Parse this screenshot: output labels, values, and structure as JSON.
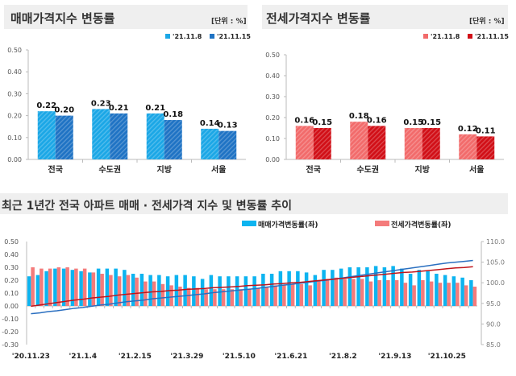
{
  "chart_data": [
    {
      "type": "bar",
      "title": "매매가격지수 변동률",
      "unit": "[단위 : %]",
      "categories": [
        "전국",
        "수도권",
        "지방",
        "서울"
      ],
      "series": [
        {
          "name": "'21.11.8",
          "values": [
            0.22,
            0.23,
            0.21,
            0.14
          ],
          "color": "#1ba7e6"
        },
        {
          "name": "'21.11.15",
          "values": [
            0.2,
            0.21,
            0.18,
            0.13
          ],
          "color": "#1f73c4"
        }
      ],
      "ylim": [
        0,
        0.5
      ],
      "yticks": [
        "0.00",
        "0.10",
        "0.20",
        "0.30",
        "0.40",
        "0.50"
      ],
      "legend": "top-right"
    },
    {
      "type": "bar",
      "title": "전세가격지수 변동률",
      "unit": "[단위 : %]",
      "categories": [
        "전국",
        "수도권",
        "지방",
        "서울"
      ],
      "series": [
        {
          "name": "'21.11.8",
          "values": [
            0.16,
            0.18,
            0.15,
            0.12
          ],
          "color": "#f26b6b"
        },
        {
          "name": "'21.11.15",
          "values": [
            0.15,
            0.16,
            0.15,
            0.11
          ],
          "color": "#d10f17"
        }
      ],
      "ylim": [
        0,
        0.5
      ],
      "yticks": [
        "0.00",
        "0.10",
        "0.20",
        "0.30",
        "0.40",
        "0.50"
      ],
      "legend": "top-right"
    },
    {
      "type": "bar+line",
      "title": "최근 1년간 전국 아파트 매매 · 전세가격 지수 및 변동률 추이",
      "xticklabels": [
        "'20.11.23",
        "'21.1.4",
        "'21.2.15",
        "'21.3.29",
        "'21.5.10",
        "'21.6.21",
        "'21.8.2",
        "'21.9.13",
        "'21.10.25"
      ],
      "ylim": [
        -0.3,
        0.5
      ],
      "yticks": [
        "-0.30",
        "-0.20",
        "-0.10",
        "0.00",
        "0.10",
        "0.20",
        "0.30",
        "0.40",
        "0.50"
      ],
      "y2lim": [
        85,
        110
      ],
      "y2ticks": [
        "85.0",
        "90.0",
        "95.0",
        "100.0",
        "105.0",
        "110.0"
      ],
      "legend": "top-right",
      "series": [
        {
          "name": "매매가격변동률(좌)",
          "color": "#0db4f0",
          "axis": "left",
          "values": [
            0.23,
            0.24,
            0.27,
            0.29,
            0.29,
            0.28,
            0.27,
            0.26,
            0.29,
            0.29,
            0.29,
            0.28,
            0.25,
            0.25,
            0.24,
            0.24,
            0.23,
            0.24,
            0.24,
            0.23,
            0.21,
            0.24,
            0.23,
            0.23,
            0.23,
            0.23,
            0.23,
            0.25,
            0.25,
            0.27,
            0.27,
            0.27,
            0.26,
            0.24,
            0.28,
            0.28,
            0.29,
            0.3,
            0.3,
            0.3,
            0.31,
            0.3,
            0.31,
            0.29,
            0.25,
            0.28,
            0.27,
            0.25,
            0.24,
            0.23,
            0.22,
            0.2
          ]
        },
        {
          "name": "전세가격변동률(좌)",
          "color": "#f47b7b",
          "axis": "left",
          "values": [
            0.3,
            0.29,
            0.29,
            0.3,
            0.3,
            0.29,
            0.29,
            0.26,
            0.25,
            0.24,
            0.23,
            0.24,
            0.22,
            0.19,
            0.19,
            0.17,
            0.16,
            0.15,
            0.14,
            0.14,
            0.13,
            0.13,
            0.13,
            0.13,
            0.13,
            0.13,
            0.14,
            0.15,
            0.16,
            0.16,
            0.17,
            0.17,
            0.16,
            0.2,
            0.21,
            0.22,
            0.21,
            0.21,
            0.21,
            0.19,
            0.2,
            0.2,
            0.2,
            0.18,
            0.16,
            0.2,
            0.19,
            0.18,
            0.18,
            0.18,
            0.16,
            0.15
          ]
        },
        {
          "type": "line",
          "color": "#2a6fc0",
          "axis": "right",
          "values": [
            92.5,
            92.7,
            93.0,
            93.2,
            93.5,
            93.8,
            94.0,
            94.3,
            94.6,
            94.8,
            95.1,
            95.4,
            95.6,
            95.8,
            96.1,
            96.3,
            96.5,
            96.7,
            96.9,
            97.1,
            97.3,
            97.6,
            97.8,
            98.0,
            98.2,
            98.4,
            98.6,
            98.9,
            99.1,
            99.4,
            99.6,
            99.9,
            100.1,
            100.4,
            100.6,
            100.9,
            101.2,
            101.5,
            101.8,
            102.1,
            102.4,
            102.7,
            103.0,
            103.3,
            103.6,
            103.9,
            104.2,
            104.5,
            104.8,
            105.0,
            105.2,
            105.4
          ]
        },
        {
          "type": "line",
          "color": "#c0141a",
          "axis": "right",
          "values": [
            94.3,
            94.6,
            94.9,
            95.2,
            95.5,
            95.8,
            96.0,
            96.3,
            96.5,
            96.7,
            97.0,
            97.2,
            97.4,
            97.6,
            97.8,
            97.9,
            98.1,
            98.2,
            98.4,
            98.5,
            98.6,
            98.8,
            98.9,
            99.0,
            99.1,
            99.3,
            99.4,
            99.5,
            99.7,
            99.8,
            100.0,
            100.1,
            100.3,
            100.5,
            100.7,
            100.9,
            101.1,
            101.3,
            101.5,
            101.7,
            101.9,
            102.1,
            102.3,
            102.5,
            102.6,
            102.8,
            103.0,
            103.2,
            103.4,
            103.6,
            103.7,
            103.9
          ]
        }
      ]
    }
  ]
}
